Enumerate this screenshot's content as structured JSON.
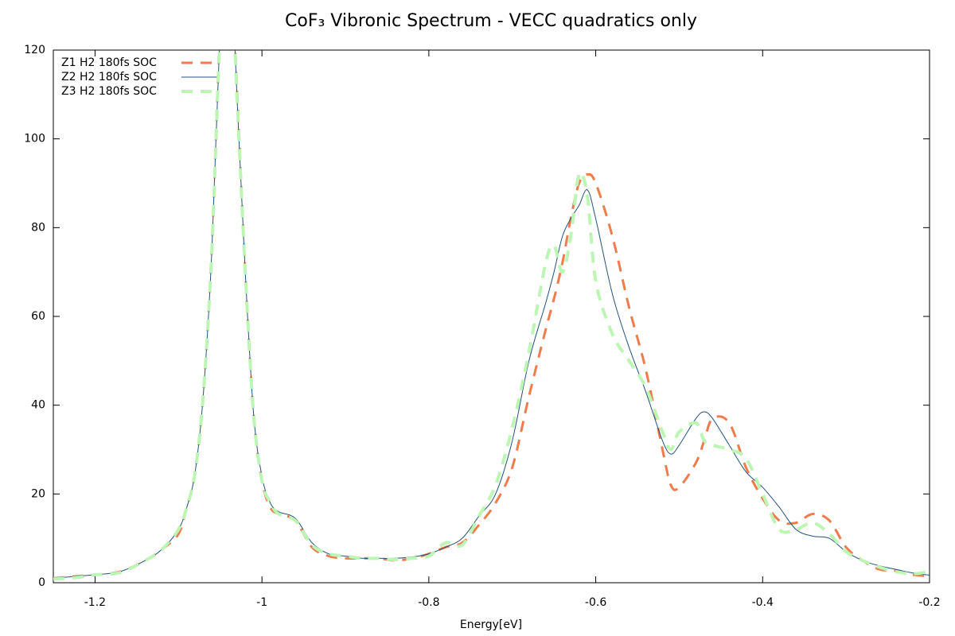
{
  "chart_data": {
    "type": "line",
    "title": "CoF₃ Vibronic Spectrum - VECC quadratics only",
    "x_label": "Energy[eV]",
    "x": [
      -1.25,
      -1.22,
      -1.2,
      -1.17,
      -1.14,
      -1.12,
      -1.1,
      -1.09,
      -1.08,
      -1.07,
      -1.06,
      -1.05,
      -1.04,
      -1.03,
      -1.02,
      -1.01,
      -1.0,
      -0.99,
      -0.98,
      -0.96,
      -0.94,
      -0.92,
      -0.9,
      -0.88,
      -0.86,
      -0.84,
      -0.82,
      -0.8,
      -0.78,
      -0.76,
      -0.74,
      -0.72,
      -0.7,
      -0.68,
      -0.66,
      -0.65,
      -0.64,
      -0.63,
      -0.62,
      -0.61,
      -0.6,
      -0.58,
      -0.56,
      -0.54,
      -0.52,
      -0.51,
      -0.5,
      -0.48,
      -0.47,
      -0.46,
      -0.44,
      -0.42,
      -0.4,
      -0.38,
      -0.36,
      -0.34,
      -0.32,
      -0.3,
      -0.28,
      -0.26,
      -0.24,
      -0.22,
      -0.2
    ],
    "series": [
      {
        "name": "Z1 H2 180fs SOC",
        "color": "#f07c4c",
        "dash": "14 10",
        "width": 3,
        "values": [
          1,
          1.5,
          1.8,
          2.5,
          5,
          7.5,
          11,
          17,
          25,
          43,
          76,
          126,
          150,
          112,
          70,
          38,
          23,
          17,
          15.5,
          14,
          8,
          6,
          5.5,
          5.5,
          5.5,
          5,
          5.5,
          6.5,
          8,
          9,
          13,
          18,
          26,
          42,
          57,
          64,
          72,
          82,
          90,
          92,
          90,
          78,
          62,
          48,
          30,
          22,
          21.5,
          27,
          32,
          37,
          36,
          26,
          19,
          14,
          13.5,
          15.5,
          14,
          8,
          5,
          3,
          2.7,
          1.8,
          1.5
        ]
      },
      {
        "name": "Z2 H2 180fs SOC",
        "color": "#24537f",
        "dash": "none",
        "width": 1,
        "values": [
          1,
          1.5,
          1.8,
          2.5,
          5,
          7.5,
          12,
          17,
          25,
          43,
          75,
          125,
          150,
          110,
          70,
          38,
          24,
          18,
          16,
          14.5,
          9,
          6.5,
          6,
          5.5,
          5.5,
          5.5,
          5.8,
          6.5,
          8,
          10,
          15,
          20,
          32,
          50,
          63,
          70,
          78,
          82,
          85,
          88.5,
          82,
          65,
          53,
          43,
          32,
          29,
          31,
          37,
          38.5,
          37,
          31,
          25,
          21.5,
          17,
          12,
          10.5,
          10,
          7,
          5,
          3.8,
          3,
          2.2,
          1.7
        ]
      },
      {
        "name": "Z3 H2 180fs SOC",
        "color": "#bdf5b5",
        "dash": "14 10",
        "width": 4,
        "values": [
          0.8,
          1.2,
          1.8,
          2.3,
          5,
          7.5,
          12,
          17,
          25,
          43,
          75,
          124,
          150,
          110,
          70,
          38,
          23,
          18,
          15.5,
          14,
          8.5,
          6.5,
          6,
          5.5,
          5.5,
          5.2,
          5.5,
          6,
          9,
          8.5,
          15,
          22,
          35,
          52,
          72,
          76,
          70,
          78,
          92,
          87,
          68,
          56,
          50,
          44,
          34,
          30,
          34,
          36,
          32,
          31,
          30,
          28,
          20,
          12,
          12,
          13.5,
          11,
          7,
          5,
          3.5,
          2.5,
          2,
          2.5
        ]
      }
    ],
    "xlim": [
      -1.25,
      -0.2
    ],
    "xticks": [
      -1.2,
      -1,
      -0.8,
      -0.6,
      -0.4,
      -0.2
    ],
    "ylim": [
      0,
      120
    ],
    "yticks": [
      0,
      20,
      40,
      60,
      80,
      100,
      120
    ],
    "zero_line": true,
    "legend": "top-left"
  }
}
